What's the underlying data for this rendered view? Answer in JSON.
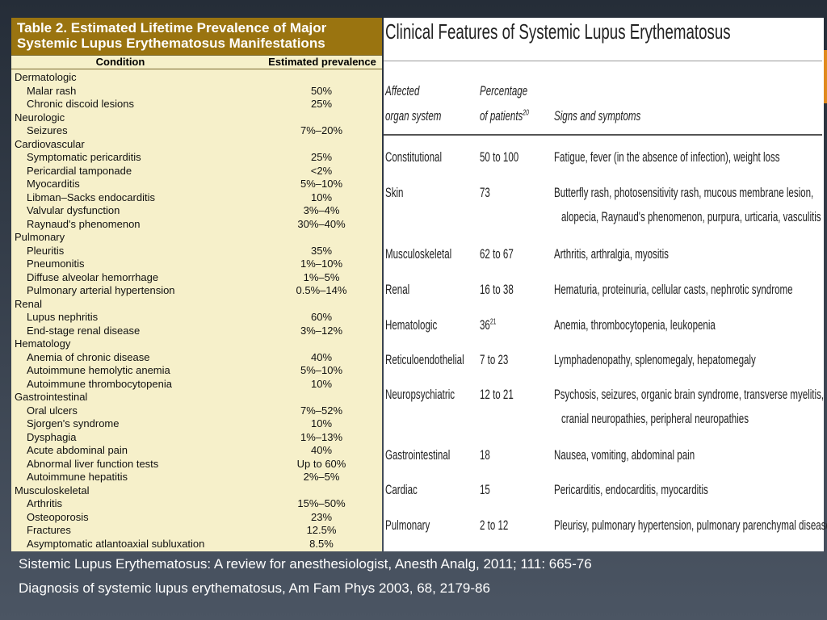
{
  "left": {
    "title_lines": [
      "Table 2.  Estimated Lifetime Prevalence of Major",
      "Systemic Lupus Erythematosus Manifestations"
    ],
    "columns": [
      "Condition",
      "Estimated prevalence"
    ],
    "groups": [
      {
        "name": "Dermatologic",
        "items": [
          {
            "condition": "Malar rash",
            "prevalence": "50%"
          },
          {
            "condition": "Chronic discoid lesions",
            "prevalence": "25%"
          }
        ]
      },
      {
        "name": "Neurologic",
        "items": [
          {
            "condition": "Seizures",
            "prevalence": "7%–20%"
          }
        ]
      },
      {
        "name": "Cardiovascular",
        "items": [
          {
            "condition": "Symptomatic pericarditis",
            "prevalence": "25%"
          },
          {
            "condition": "Pericardial tamponade",
            "prevalence": "<2%"
          },
          {
            "condition": "Myocarditis",
            "prevalence": "5%–10%"
          },
          {
            "condition": "Libman–Sacks endocarditis",
            "prevalence": "10%"
          },
          {
            "condition": "Valvular dysfunction",
            "prevalence": "3%–4%"
          },
          {
            "condition": "Raynaud's phenomenon",
            "prevalence": "30%–40%"
          }
        ]
      },
      {
        "name": "Pulmonary",
        "items": [
          {
            "condition": "Pleuritis",
            "prevalence": "35%"
          },
          {
            "condition": "Pneumonitis",
            "prevalence": "1%–10%"
          },
          {
            "condition": "Diffuse alveolar hemorrhage",
            "prevalence": "1%–5%"
          },
          {
            "condition": "Pulmonary arterial hypertension",
            "prevalence": "0.5%–14%"
          }
        ]
      },
      {
        "name": "Renal",
        "items": [
          {
            "condition": "Lupus nephritis",
            "prevalence": "60%"
          },
          {
            "condition": "End-stage renal disease",
            "prevalence": "3%–12%"
          }
        ]
      },
      {
        "name": "Hematology",
        "items": [
          {
            "condition": "Anemia of chronic disease",
            "prevalence": "40%"
          },
          {
            "condition": "Autoimmune hemolytic anemia",
            "prevalence": "5%–10%"
          },
          {
            "condition": "Autoimmune thrombocytopenia",
            "prevalence": "10%"
          }
        ]
      },
      {
        "name": "Gastrointestinal",
        "items": [
          {
            "condition": "Oral ulcers",
            "prevalence": "7%–52%"
          },
          {
            "condition": "Sjorgen's syndrome",
            "prevalence": "10%"
          },
          {
            "condition": "Dysphagia",
            "prevalence": "1%–13%"
          },
          {
            "condition": "Acute abdominal pain",
            "prevalence": "40%"
          },
          {
            "condition": "Abnormal liver function tests",
            "prevalence": "Up to 60%"
          },
          {
            "condition": "Autoimmune hepatitis",
            "prevalence": "2%–5%"
          }
        ]
      },
      {
        "name": "Musculoskeletal",
        "items": [
          {
            "condition": "Arthritis",
            "prevalence": "15%–50%"
          },
          {
            "condition": "Osteoporosis",
            "prevalence": "23%"
          },
          {
            "condition": "Fractures",
            "prevalence": "12.5%"
          },
          {
            "condition": "Asymptomatic atlantoaxial subluxation",
            "prevalence": "8.5%"
          }
        ]
      }
    ]
  },
  "right": {
    "title": "Clinical Features of Systemic Lupus Erythematosus",
    "columns": [
      {
        "lines": [
          "Affected",
          "organ system"
        ]
      },
      {
        "lines": [
          "Percentage",
          "of patients"
        ],
        "ref": "20"
      },
      {
        "lines": [
          "Signs and symptoms"
        ]
      }
    ],
    "rows": [
      {
        "organ": "Constitutional",
        "percentage": "50 to 100",
        "signs": [
          "Fatigue, fever (in the absence of infection), weight loss"
        ]
      },
      {
        "organ": "Skin",
        "percentage": "73",
        "signs": [
          "Butterfly rash, photosensitivity rash, mucous membrane lesion,",
          "alopecia, Raynaud's phenomenon, purpura, urticaria, vasculitis"
        ]
      },
      {
        "organ": "Musculoskeletal",
        "percentage": "62 to 67",
        "signs": [
          "Arthritis, arthralgia, myositis"
        ]
      },
      {
        "organ": "Renal",
        "percentage": "16 to 38",
        "signs": [
          "Hematuria, proteinuria, cellular casts, nephrotic syndrome"
        ]
      },
      {
        "organ": "Hematologic",
        "percentage": "36",
        "ref": "21",
        "signs": [
          "Anemia, thrombocytopenia, leukopenia"
        ]
      },
      {
        "organ": "Reticuloendothelial",
        "percentage": "7 to 23",
        "signs": [
          "Lymphadenopathy, splenomegaly, hepatomegaly"
        ]
      },
      {
        "organ": "Neuropsychiatric",
        "percentage": "12 to 21",
        "signs": [
          "Psychosis, seizures, organic brain syndrome, transverse myelitis,",
          "cranial neuropathies, peripheral neuropathies"
        ]
      },
      {
        "organ": "Gastrointestinal",
        "percentage": "18",
        "signs": [
          "Nausea, vomiting, abdominal pain"
        ]
      },
      {
        "organ": "Cardiac",
        "percentage": "15",
        "signs": [
          "Pericarditis, endocarditis, myocarditis"
        ]
      },
      {
        "organ": "Pulmonary",
        "percentage": "2 to 12",
        "signs": [
          "Pleurisy, pulmonary hypertension, pulmonary parenchymal disease"
        ]
      }
    ]
  },
  "references": [
    "Sistemic Lupus Erythematosus: A review for anesthesiologist, Anesth Analg, 2011; 111: 665-76",
    "Diagnosis of systemic lupus erythematosus, Am Fam Phys 2003, 68, 2179-86"
  ]
}
